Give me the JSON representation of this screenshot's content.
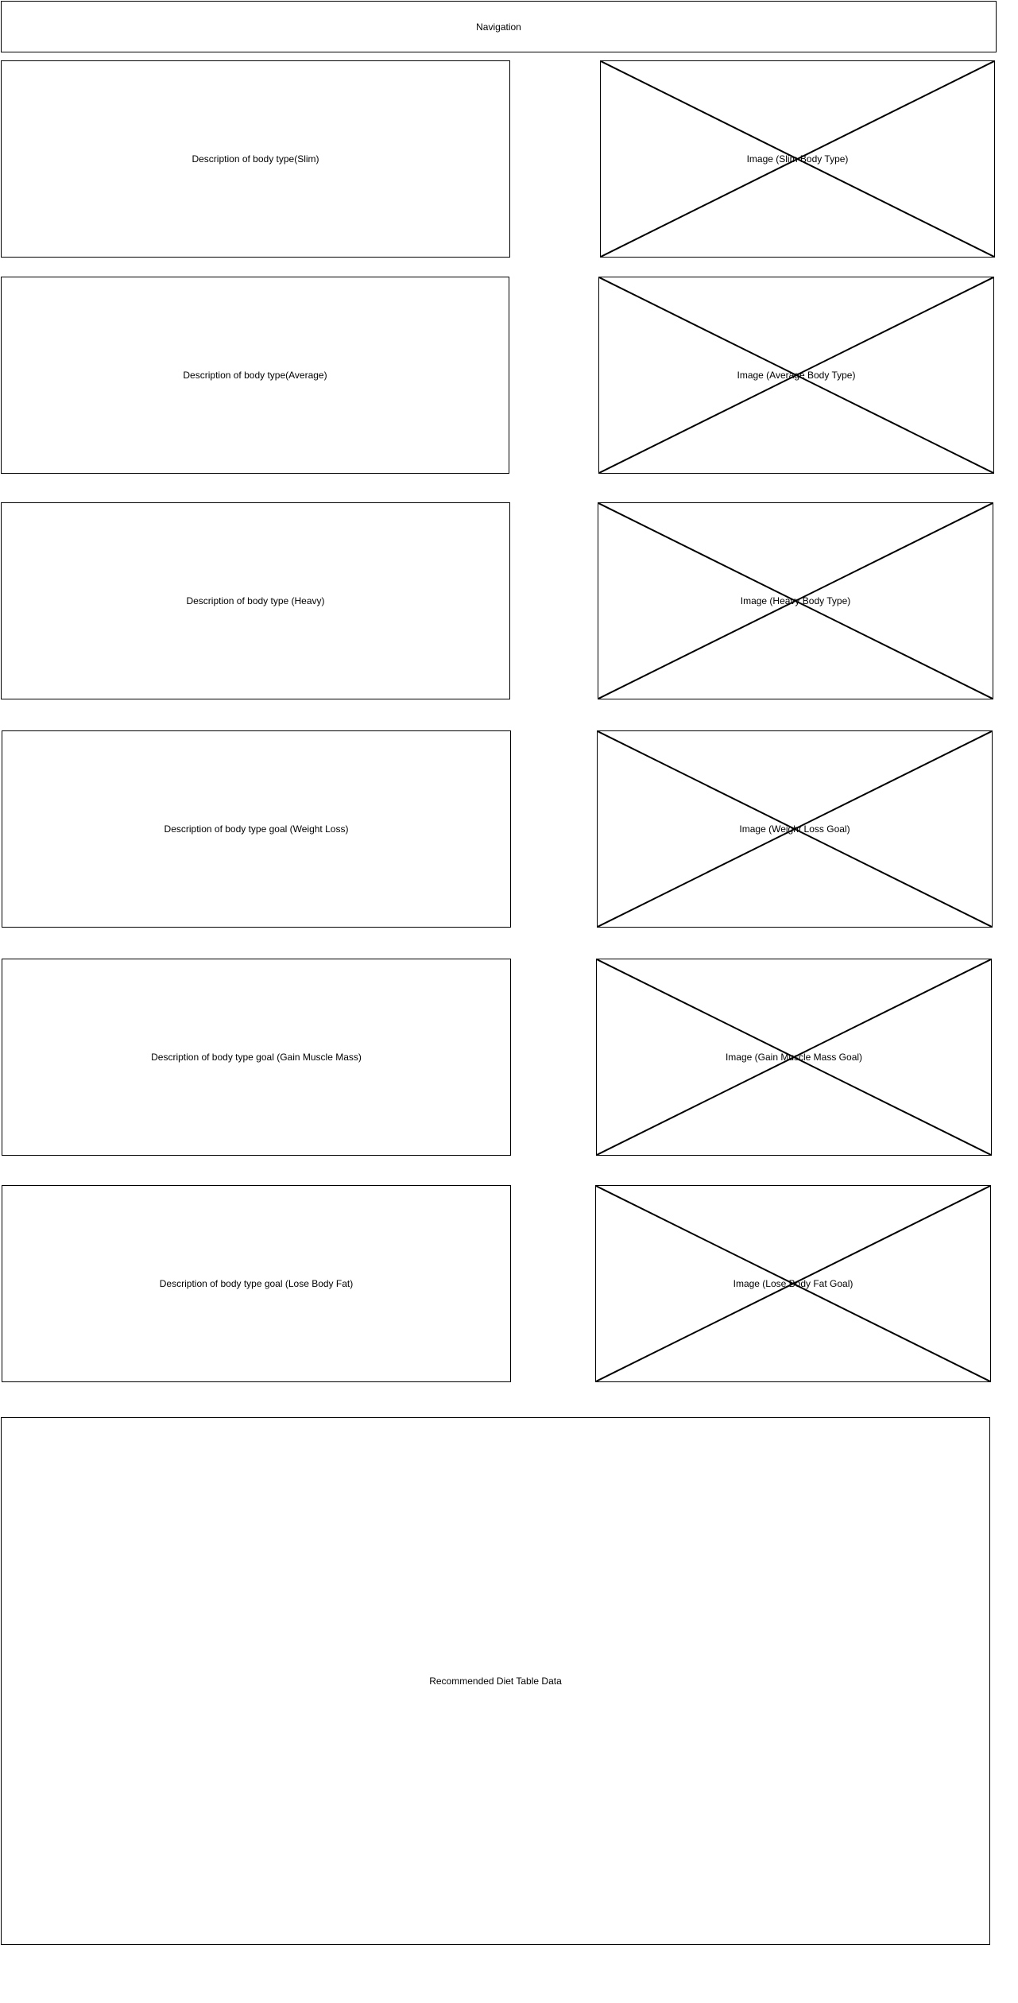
{
  "navigation": {
    "label": "Navigation"
  },
  "sections": [
    {
      "description": "Description of body type(Slim)",
      "image": "Image (Slim Body Type)",
      "image_icon": "image-placeholder-icon"
    },
    {
      "description": "Description of body type(Average)",
      "image": "Image (Average Body Type)",
      "image_icon": "image-placeholder-icon"
    },
    {
      "description": "Description of body type (Heavy)",
      "image": "Image (Heavy Body Type)",
      "image_icon": "image-placeholder-icon"
    },
    {
      "description": "Description of body type goal (Weight Loss)",
      "image": "Image (Weight Loss Goal)",
      "image_icon": "image-placeholder-icon"
    },
    {
      "description": "Description of body type goal (Gain Muscle Mass)",
      "image": "Image (Gain Muscle Mass Goal)",
      "image_icon": "image-placeholder-icon"
    },
    {
      "description": "Description of body type goal (Lose Body Fat)",
      "image": "Image (Lose Body Fat Goal)",
      "image_icon": "image-placeholder-icon"
    }
  ],
  "diet_table": {
    "label": "Recommended Diet Table Data"
  },
  "colors": {
    "stroke": "#000000",
    "background": "#ffffff"
  }
}
